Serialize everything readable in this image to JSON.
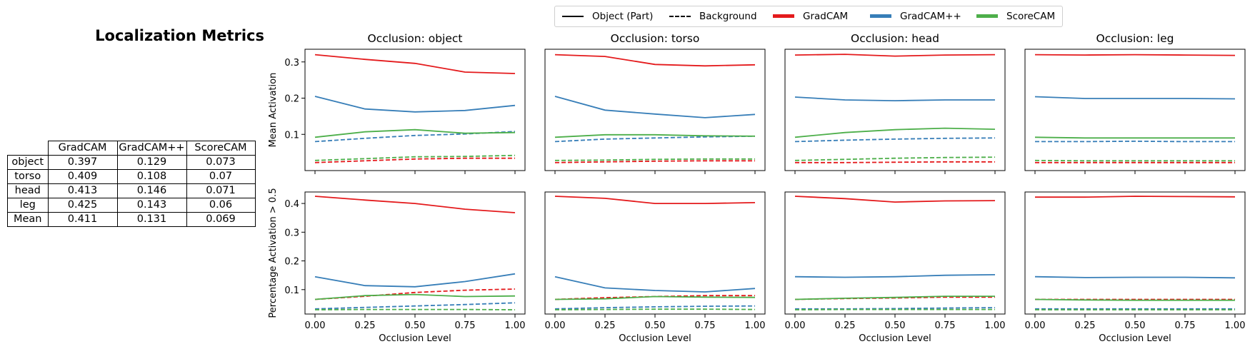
{
  "table_title": "Localization Metrics",
  "table": {
    "columns": [
      "GradCAM",
      "GradCAM++",
      "ScoreCAM"
    ],
    "rows": [
      {
        "label": "object",
        "values": [
          "0.397",
          "0.129",
          "0.073"
        ]
      },
      {
        "label": "torso",
        "values": [
          "0.409",
          "0.108",
          "0.07"
        ]
      },
      {
        "label": "head",
        "values": [
          "0.413",
          "0.146",
          "0.071"
        ]
      },
      {
        "label": "leg",
        "values": [
          "0.425",
          "0.143",
          "0.06"
        ]
      },
      {
        "label": "Mean",
        "values": [
          "0.411",
          "0.131",
          "0.069"
        ]
      }
    ]
  },
  "legend": [
    {
      "label": "Object (Part)",
      "style": "solid",
      "color": "#000000"
    },
    {
      "label": "Background",
      "style": "dashed",
      "color": "#000000"
    },
    {
      "label": "GradCAM",
      "style": "thick",
      "color": "#e41a1c"
    },
    {
      "label": "GradCAM++",
      "style": "thick",
      "color": "#377eb8"
    },
    {
      "label": "ScoreCAM",
      "style": "thick",
      "color": "#4daf4a"
    }
  ],
  "colors": {
    "GradCAM": "#e41a1c",
    "GradCAM++": "#377eb8",
    "ScoreCAM": "#4daf4a"
  },
  "chart_data": {
    "type": "line",
    "x": [
      0.0,
      0.25,
      0.5,
      0.75,
      1.0
    ],
    "xticks": [
      "0.00",
      "0.25",
      "0.50",
      "0.75",
      "1.00"
    ],
    "xlabel": "Occlusion Level",
    "column_titles": [
      "Occlusion: object",
      "Occlusion: torso",
      "Occlusion: head",
      "Occlusion: leg"
    ],
    "rows": [
      {
        "ylabel": "Mean Activation",
        "ylim": [
          0.0,
          0.335
        ],
        "yticks": [
          0.1,
          0.2,
          0.3
        ],
        "ytick_labels": [
          "0.1",
          "0.2",
          "0.3"
        ],
        "panels": [
          {
            "GradCAM": {
              "object": [
                0.32,
                0.307,
                0.296,
                0.272,
                0.268
              ],
              "background": [
                0.022,
                0.027,
                0.032,
                0.034,
                0.034
              ]
            },
            "GradCAM++": {
              "object": [
                0.205,
                0.17,
                0.162,
                0.166,
                0.18
              ],
              "background": [
                0.08,
                0.089,
                0.097,
                0.101,
                0.108
              ]
            },
            "ScoreCAM": {
              "object": [
                0.092,
                0.107,
                0.113,
                0.103,
                0.105
              ],
              "background": [
                0.028,
                0.033,
                0.038,
                0.039,
                0.042
              ]
            }
          },
          {
            "GradCAM": {
              "object": [
                0.32,
                0.315,
                0.293,
                0.289,
                0.292
              ],
              "background": [
                0.022,
                0.024,
                0.026,
                0.027,
                0.027
              ]
            },
            "GradCAM++": {
              "object": [
                0.205,
                0.167,
                0.156,
                0.146,
                0.155
              ],
              "background": [
                0.08,
                0.087,
                0.09,
                0.093,
                0.095
              ]
            },
            "ScoreCAM": {
              "object": [
                0.092,
                0.099,
                0.099,
                0.096,
                0.095
              ],
              "background": [
                0.028,
                0.029,
                0.031,
                0.032,
                0.032
              ]
            }
          },
          {
            "GradCAM": {
              "object": [
                0.319,
                0.321,
                0.316,
                0.319,
                0.32
              ],
              "background": [
                0.022,
                0.022,
                0.023,
                0.024,
                0.024
              ]
            },
            "GradCAM++": {
              "object": [
                0.203,
                0.195,
                0.193,
                0.195,
                0.195
              ],
              "background": [
                0.08,
                0.084,
                0.087,
                0.089,
                0.09
              ]
            },
            "ScoreCAM": {
              "object": [
                0.092,
                0.105,
                0.113,
                0.117,
                0.114
              ],
              "background": [
                0.028,
                0.031,
                0.034,
                0.036,
                0.037
              ]
            }
          },
          {
            "GradCAM": {
              "object": [
                0.32,
                0.319,
                0.32,
                0.319,
                0.318
              ],
              "background": [
                0.022,
                0.022,
                0.022,
                0.022,
                0.022
              ]
            },
            "GradCAM++": {
              "object": [
                0.204,
                0.199,
                0.199,
                0.199,
                0.198
              ],
              "background": [
                0.08,
                0.08,
                0.081,
                0.08,
                0.08
              ]
            },
            "ScoreCAM": {
              "object": [
                0.092,
                0.09,
                0.09,
                0.09,
                0.09
              ],
              "background": [
                0.028,
                0.027,
                0.027,
                0.027,
                0.027
              ]
            }
          }
        ]
      },
      {
        "ylabel": "Percentage Activation > 0.5",
        "ylim": [
          0.015,
          0.44
        ],
        "yticks": [
          0.1,
          0.2,
          0.3,
          0.4
        ],
        "ytick_labels": [
          "0.1",
          "0.2",
          "0.3",
          "0.4"
        ],
        "panels": [
          {
            "GradCAM": {
              "object": [
                0.425,
                0.412,
                0.4,
                0.38,
                0.368
              ],
              "background": [
                0.066,
                0.077,
                0.09,
                0.098,
                0.102
              ]
            },
            "GradCAM++": {
              "object": [
                0.145,
                0.114,
                0.11,
                0.128,
                0.155
              ],
              "background": [
                0.033,
                0.038,
                0.043,
                0.048,
                0.054
              ]
            },
            "ScoreCAM": {
              "object": [
                0.066,
                0.079,
                0.083,
                0.076,
                0.078
              ],
              "background": [
                0.03,
                0.031,
                0.031,
                0.031,
                0.03
              ]
            }
          },
          {
            "GradCAM": {
              "object": [
                0.425,
                0.418,
                0.4,
                0.4,
                0.403
              ],
              "background": [
                0.066,
                0.072,
                0.076,
                0.079,
                0.079
              ]
            },
            "GradCAM++": {
              "object": [
                0.145,
                0.106,
                0.097,
                0.092,
                0.104
              ],
              "background": [
                0.033,
                0.037,
                0.04,
                0.042,
                0.043
              ]
            },
            "ScoreCAM": {
              "object": [
                0.066,
                0.068,
                0.076,
                0.074,
                0.073
              ],
              "background": [
                0.03,
                0.031,
                0.032,
                0.032,
                0.031
              ]
            }
          },
          {
            "GradCAM": {
              "object": [
                0.425,
                0.417,
                0.405,
                0.409,
                0.41
              ],
              "background": [
                0.066,
                0.069,
                0.071,
                0.074,
                0.074
              ]
            },
            "GradCAM++": {
              "object": [
                0.145,
                0.143,
                0.145,
                0.15,
                0.152
              ],
              "background": [
                0.033,
                0.033,
                0.034,
                0.036,
                0.037
              ]
            },
            "ScoreCAM": {
              "object": [
                0.066,
                0.07,
                0.073,
                0.077,
                0.077
              ],
              "background": [
                0.03,
                0.031,
                0.031,
                0.031,
                0.031
              ]
            }
          },
          {
            "GradCAM": {
              "object": [
                0.422,
                0.422,
                0.425,
                0.424,
                0.423
              ],
              "background": [
                0.066,
                0.066,
                0.066,
                0.066,
                0.066
              ]
            },
            "GradCAM++": {
              "object": [
                0.145,
                0.142,
                0.143,
                0.143,
                0.141
              ],
              "background": [
                0.033,
                0.033,
                0.033,
                0.033,
                0.033
              ]
            },
            "ScoreCAM": {
              "object": [
                0.066,
                0.064,
                0.063,
                0.063,
                0.063
              ],
              "background": [
                0.03,
                0.03,
                0.03,
                0.03,
                0.03
              ]
            }
          }
        ]
      }
    ]
  }
}
